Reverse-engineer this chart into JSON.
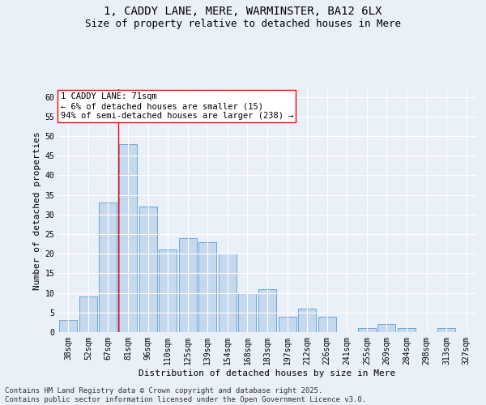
{
  "title_line1": "1, CADDY LANE, MERE, WARMINSTER, BA12 6LX",
  "title_line2": "Size of property relative to detached houses in Mere",
  "xlabel": "Distribution of detached houses by size in Mere",
  "ylabel": "Number of detached properties",
  "categories": [
    "38sqm",
    "52sqm",
    "67sqm",
    "81sqm",
    "96sqm",
    "110sqm",
    "125sqm",
    "139sqm",
    "154sqm",
    "168sqm",
    "183sqm",
    "197sqm",
    "212sqm",
    "226sqm",
    "241sqm",
    "255sqm",
    "269sqm",
    "284sqm",
    "298sqm",
    "313sqm",
    "327sqm"
  ],
  "values": [
    3,
    9,
    33,
    48,
    32,
    21,
    24,
    23,
    20,
    10,
    11,
    4,
    6,
    4,
    0,
    1,
    2,
    1,
    0,
    1,
    0
  ],
  "bar_color": "#c5d8ed",
  "bar_edge_color": "#5b9bd5",
  "annotation_text": "1 CADDY LANE: 71sqm\n← 6% of detached houses are smaller (15)\n94% of semi-detached houses are larger (238) →",
  "annotation_box_color": "white",
  "annotation_box_edge_color": "red",
  "vline_color": "red",
  "vline_x_index": 2.5,
  "ylim": [
    0,
    62
  ],
  "yticks": [
    0,
    5,
    10,
    15,
    20,
    25,
    30,
    35,
    40,
    45,
    50,
    55,
    60
  ],
  "bg_color": "#eaf0f8",
  "plot_bg_color": "#eaf0f8",
  "grid_color": "white",
  "footer": "Contains HM Land Registry data © Crown copyright and database right 2025.\nContains public sector information licensed under the Open Government Licence v3.0.",
  "title_fontsize": 10,
  "subtitle_fontsize": 9,
  "axis_label_fontsize": 8,
  "tick_fontsize": 7,
  "annotation_fontsize": 7.5,
  "footer_fontsize": 6.5
}
